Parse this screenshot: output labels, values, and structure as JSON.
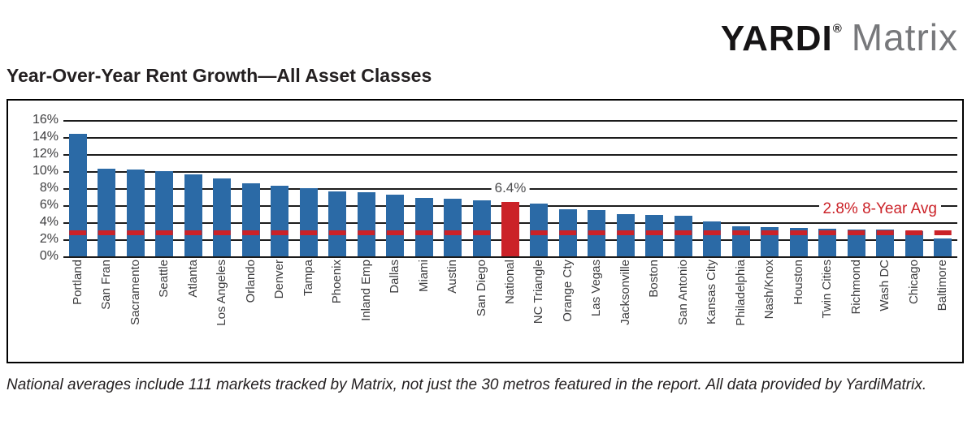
{
  "logo": {
    "yardi": "YARDI",
    "registered": "®",
    "matrix": "Matrix"
  },
  "title": "Year-Over-Year Rent Growth—All Asset Classes",
  "footnote": "National averages include 111 markets tracked by Matrix, not just the 30 metros featured in the report. All data provided by YardiMatrix.",
  "colors": {
    "bar_blue": "#2b6aa6",
    "bar_red": "#cb2228",
    "avg_line_red": "#cb2228",
    "grid_line": "#1c1c1c",
    "matrix_gray": "#77787b"
  },
  "chart_data": {
    "type": "bar",
    "title": "Year-Over-Year Rent Growth—All Asset Classes",
    "xlabel": "",
    "ylabel": "",
    "ylim": [
      0,
      16
    ],
    "ytick_step": 2,
    "ytick_labels": [
      "16%",
      "14%",
      "12%",
      "10%",
      "8%",
      "6%",
      "4%",
      "2%",
      "0%"
    ],
    "grid": true,
    "legend": "none",
    "categories": [
      "Portland",
      "San Fran",
      "Sacramento",
      "Seattle",
      "Atlanta",
      "Los Angeles",
      "Orlando",
      "Denver",
      "Tampa",
      "Phoenix",
      "Inland Emp",
      "Dallas",
      "Miami",
      "Austin",
      "San Diego",
      "National",
      "NC Triangle",
      "Orange Cty",
      "Las Vegas",
      "Jacksonville",
      "Boston",
      "San Antonio",
      "Kansas City",
      "Philadelphia",
      "Nash/Knox",
      "Houston",
      "Twin Cities",
      "Richmond",
      "Wash DC",
      "Chicago",
      "Baltimore"
    ],
    "values": [
      14.4,
      10.3,
      10.2,
      10.0,
      9.6,
      9.1,
      8.6,
      8.3,
      8.0,
      7.6,
      7.5,
      7.2,
      6.9,
      6.8,
      6.6,
      6.4,
      6.2,
      5.5,
      5.4,
      5.0,
      4.9,
      4.8,
      4.1,
      3.5,
      3.4,
      3.3,
      3.2,
      3.1,
      3.1,
      3.0,
      2.1
    ],
    "highlight_category": "National",
    "highlight_value_label": "6.4%",
    "reference_line": {
      "value": 2.8,
      "label": "2.8% 8-Year Avg"
    }
  }
}
